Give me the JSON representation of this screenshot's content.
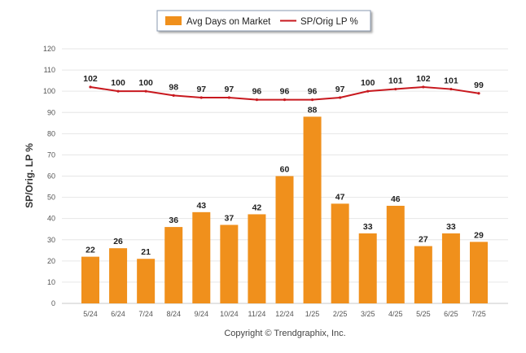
{
  "chart_data": {
    "type": "bar",
    "categories": [
      "5/24",
      "6/24",
      "7/24",
      "8/24",
      "9/24",
      "10/24",
      "11/24",
      "12/24",
      "1/25",
      "2/25",
      "3/25",
      "4/25",
      "5/25",
      "6/25",
      "7/25"
    ],
    "series": [
      {
        "name": "Avg Days on Market",
        "type": "bar",
        "color": "#f0901c",
        "values": [
          22,
          26,
          21,
          36,
          43,
          37,
          42,
          60,
          88,
          47,
          33,
          46,
          27,
          33,
          29
        ]
      },
      {
        "name": "SP/Orig LP %",
        "type": "line",
        "color": "#c8181e",
        "values": [
          102,
          100,
          100,
          98,
          97,
          97,
          96,
          96,
          96,
          97,
          100,
          101,
          102,
          101,
          99
        ]
      }
    ],
    "ylabel": "SP/Orig. LP %",
    "xlabel": "",
    "ylim": [
      0,
      120
    ],
    "yticks": [
      0,
      10,
      20,
      30,
      40,
      50,
      60,
      70,
      80,
      90,
      100,
      110,
      120
    ],
    "grid": true,
    "legend": "top-center"
  },
  "footer": "Copyright © Trendgraphix, Inc."
}
